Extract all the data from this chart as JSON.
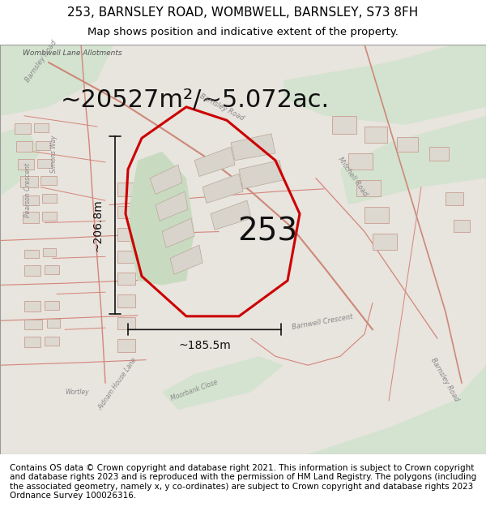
{
  "title_line1": "253, BARNSLEY ROAD, WOMBWELL, BARNSLEY, S73 8FH",
  "title_line2": "Map shows position and indicative extent of the property.",
  "area_label": "~20527m²/~5.072ac.",
  "property_number": "253",
  "dim_horizontal": "~185.5m",
  "dim_vertical": "~206.8m",
  "footer_text": "Contains OS data © Crown copyright and database right 2021. This information is subject to Crown copyright and database rights 2023 and is reproduced with the permission of HM Land Registry. The polygons (including the associated geometry, namely x, y co-ordinates) are subject to Crown copyright and database rights 2023 Ordnance Survey 100026316.",
  "bg_map_color": "#f2ede8",
  "bg_green_color": "#d4e3d0",
  "property_outline_color": "#cc0000",
  "dim_color": "#111111",
  "title_bg": "#ffffff",
  "footer_bg": "#ffffff",
  "map_bg": "#e8e4de",
  "title_fontsize": 11,
  "subtitle_fontsize": 9.5,
  "area_fontsize": 22,
  "number_fontsize": 28,
  "dim_fontsize": 10,
  "footer_fontsize": 7.5,
  "road_color_main": "#cc8878",
  "road_color_minor": "#d4857a",
  "building_face": "#ddd8d0",
  "building_edge": "#c8a090",
  "inner_building_face": "#d8d4cc",
  "inner_building_edge": "#b8a898",
  "green_inner": "#c8dbc0",
  "label_color": "#888888",
  "label_color_dark": "#555555"
}
